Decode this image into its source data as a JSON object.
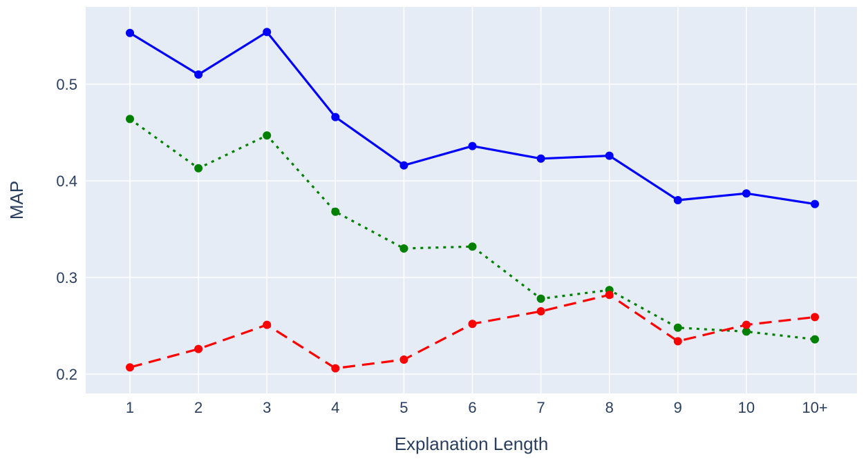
{
  "chart_data": {
    "type": "line",
    "xlabel": "Explanation Length",
    "ylabel": "MAP",
    "categories": [
      "1",
      "2",
      "3",
      "4",
      "5",
      "6",
      "7",
      "8",
      "9",
      "10",
      "10+"
    ],
    "ylim": [
      0.18,
      0.58
    ],
    "yticks": [
      "0.2",
      "0.3",
      "0.4",
      "0.5"
    ],
    "grid": true,
    "plot_bgcolor": "#e5ecf6",
    "series": [
      {
        "color": "#0000ff",
        "dash": "solid",
        "values": [
          0.553,
          0.51,
          0.554,
          0.466,
          0.416,
          0.436,
          0.423,
          0.426,
          0.38,
          0.387,
          0.376
        ]
      },
      {
        "color": "#008000",
        "dash": "dot",
        "values": [
          0.464,
          0.413,
          0.447,
          0.368,
          0.33,
          0.332,
          0.278,
          0.287,
          0.248,
          0.244,
          0.236
        ]
      },
      {
        "color": "#ff0000",
        "dash": "dash",
        "values": [
          0.207,
          0.226,
          0.251,
          0.206,
          0.215,
          0.252,
          0.265,
          0.282,
          0.234,
          0.251,
          0.259
        ]
      }
    ]
  }
}
